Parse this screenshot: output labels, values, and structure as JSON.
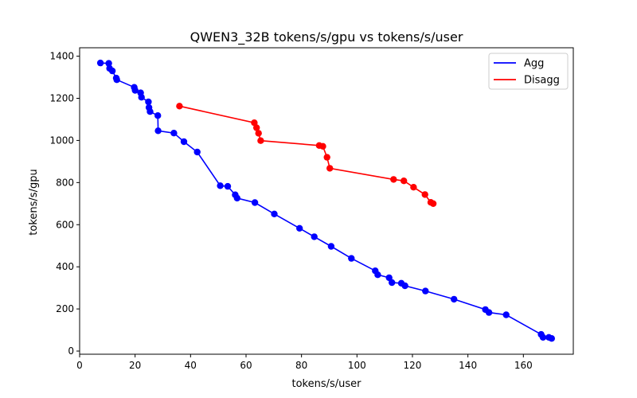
{
  "chart_data": {
    "type": "line",
    "title": "QWEN3_32B tokens/s/gpu vs tokens/s/user",
    "xlabel": "tokens/s/user",
    "ylabel": "tokens/s/gpu",
    "xlim": [
      0,
      178
    ],
    "ylim": [
      -15,
      1440
    ],
    "xticks": [
      0,
      20,
      40,
      60,
      80,
      100,
      120,
      140,
      160
    ],
    "yticks": [
      0,
      200,
      400,
      600,
      800,
      1000,
      1200,
      1400
    ],
    "grid": false,
    "legend_position": "top-right",
    "series": [
      {
        "name": "Agg",
        "color": "#0000ff",
        "marker": "circle",
        "points": [
          [
            7.5,
            1368
          ],
          [
            10.5,
            1366
          ],
          [
            10.8,
            1342
          ],
          [
            11.8,
            1330
          ],
          [
            13.2,
            1296
          ],
          [
            13.4,
            1288
          ],
          [
            19.7,
            1252
          ],
          [
            20.0,
            1238
          ],
          [
            22.0,
            1226
          ],
          [
            22.3,
            1205
          ],
          [
            24.8,
            1183
          ],
          [
            25.0,
            1156
          ],
          [
            25.4,
            1137
          ],
          [
            28.2,
            1118
          ],
          [
            28.3,
            1046
          ],
          [
            34.0,
            1035
          ],
          [
            37.6,
            994
          ],
          [
            42.4,
            945
          ],
          [
            50.7,
            785
          ],
          [
            53.4,
            782
          ],
          [
            56.1,
            742
          ],
          [
            56.8,
            726
          ],
          [
            63.2,
            705
          ],
          [
            70.2,
            651
          ],
          [
            79.3,
            583
          ],
          [
            84.6,
            543
          ],
          [
            90.7,
            497
          ],
          [
            98.0,
            440
          ],
          [
            106.6,
            381
          ],
          [
            107.5,
            362
          ],
          [
            111.6,
            348
          ],
          [
            112.6,
            325
          ],
          [
            116.0,
            322
          ],
          [
            117.3,
            310
          ],
          [
            124.7,
            285
          ],
          [
            135.0,
            246
          ],
          [
            146.3,
            197
          ],
          [
            147.6,
            183
          ],
          [
            153.8,
            172
          ],
          [
            166.4,
            79
          ],
          [
            167.1,
            65
          ],
          [
            169.2,
            65
          ],
          [
            170.2,
            60
          ]
        ]
      },
      {
        "name": "Disagg",
        "color": "#ff0000",
        "marker": "circle",
        "points": [
          [
            36.0,
            1163
          ],
          [
            63.0,
            1084
          ],
          [
            63.8,
            1060
          ],
          [
            64.5,
            1034
          ],
          [
            65.3,
            999
          ],
          [
            86.4,
            976
          ],
          [
            87.7,
            972
          ],
          [
            89.2,
            920
          ],
          [
            90.2,
            868
          ],
          [
            113.2,
            815
          ],
          [
            116.9,
            808
          ],
          [
            120.4,
            778
          ],
          [
            124.5,
            743
          ],
          [
            126.6,
            706
          ],
          [
            127.5,
            700
          ]
        ]
      }
    ]
  }
}
